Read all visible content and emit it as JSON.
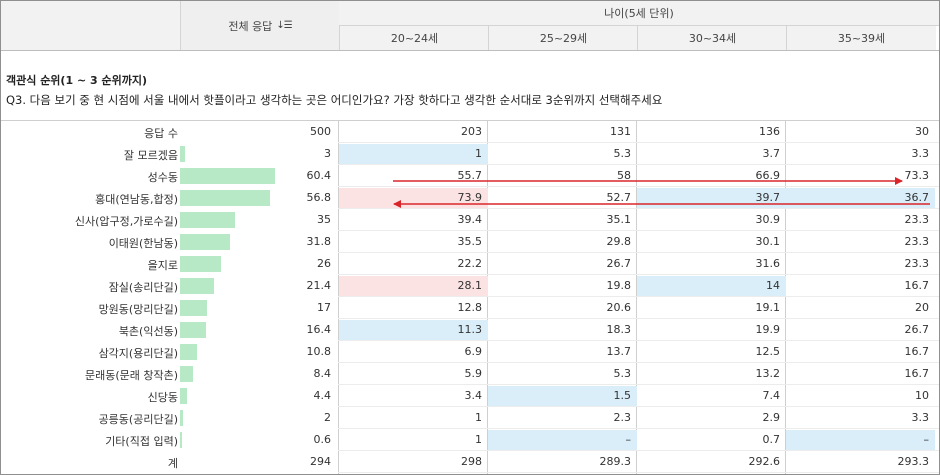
{
  "header": {
    "total_label": "전체 응답",
    "sort_glyph": "↓☰",
    "age_group_label": "나이(5세 단위)",
    "age_columns": [
      "20~24세",
      "25~29세",
      "30~34세",
      "35~39세"
    ]
  },
  "question": {
    "type_label": "객관식 순위(1 ~ 3 순위까지)",
    "text": "Q3. 다음 보기 중 현 시점에 서울 내에서 핫플이라고 생각하는 곳은 어디인가요? 가장 핫하다고 생각한 순서대로 3순위까지 선택해주세요"
  },
  "rows": [
    {
      "label": "응답 수",
      "total": "500",
      "bar": 0,
      "cells": [
        {
          "v": "203",
          "h": ""
        },
        {
          "v": "131",
          "h": ""
        },
        {
          "v": "136",
          "h": ""
        },
        {
          "v": "30",
          "h": ""
        }
      ]
    },
    {
      "label": "잘 모르겠음",
      "total": "3",
      "bar": 3,
      "cells": [
        {
          "v": "1",
          "h": "blue"
        },
        {
          "v": "5.3",
          "h": ""
        },
        {
          "v": "3.7",
          "h": ""
        },
        {
          "v": "3.3",
          "h": ""
        }
      ]
    },
    {
      "label": "성수동",
      "total": "60.4",
      "bar": 60.4,
      "cells": [
        {
          "v": "55.7",
          "h": ""
        },
        {
          "v": "58",
          "h": ""
        },
        {
          "v": "66.9",
          "h": ""
        },
        {
          "v": "73.3",
          "h": ""
        }
      ]
    },
    {
      "label": "홍대(연남동,합정)",
      "total": "56.8",
      "bar": 56.8,
      "cells": [
        {
          "v": "73.9",
          "h": "pink"
        },
        {
          "v": "52.7",
          "h": ""
        },
        {
          "v": "39.7",
          "h": "blue"
        },
        {
          "v": "36.7",
          "h": "blue"
        }
      ]
    },
    {
      "label": "신사(압구정,가로수길)",
      "total": "35",
      "bar": 35,
      "cells": [
        {
          "v": "39.4",
          "h": ""
        },
        {
          "v": "35.1",
          "h": ""
        },
        {
          "v": "30.9",
          "h": ""
        },
        {
          "v": "23.3",
          "h": ""
        }
      ]
    },
    {
      "label": "이태원(한남동)",
      "total": "31.8",
      "bar": 31.8,
      "cells": [
        {
          "v": "35.5",
          "h": ""
        },
        {
          "v": "29.8",
          "h": ""
        },
        {
          "v": "30.1",
          "h": ""
        },
        {
          "v": "23.3",
          "h": ""
        }
      ]
    },
    {
      "label": "을지로",
      "total": "26",
      "bar": 26,
      "cells": [
        {
          "v": "22.2",
          "h": ""
        },
        {
          "v": "26.7",
          "h": ""
        },
        {
          "v": "31.6",
          "h": ""
        },
        {
          "v": "23.3",
          "h": ""
        }
      ]
    },
    {
      "label": "잠실(송리단길)",
      "total": "21.4",
      "bar": 21.4,
      "cells": [
        {
          "v": "28.1",
          "h": "pink"
        },
        {
          "v": "19.8",
          "h": ""
        },
        {
          "v": "14",
          "h": "blue"
        },
        {
          "v": "16.7",
          "h": ""
        }
      ]
    },
    {
      "label": "망원동(망리단길)",
      "total": "17",
      "bar": 17,
      "cells": [
        {
          "v": "12.8",
          "h": ""
        },
        {
          "v": "20.6",
          "h": ""
        },
        {
          "v": "19.1",
          "h": ""
        },
        {
          "v": "20",
          "h": ""
        }
      ]
    },
    {
      "label": "북촌(익선동)",
      "total": "16.4",
      "bar": 16.4,
      "cells": [
        {
          "v": "11.3",
          "h": "blue"
        },
        {
          "v": "18.3",
          "h": ""
        },
        {
          "v": "19.9",
          "h": ""
        },
        {
          "v": "26.7",
          "h": ""
        }
      ]
    },
    {
      "label": "삼각지(용리단길)",
      "total": "10.8",
      "bar": 10.8,
      "cells": [
        {
          "v": "6.9",
          "h": ""
        },
        {
          "v": "13.7",
          "h": ""
        },
        {
          "v": "12.5",
          "h": ""
        },
        {
          "v": "16.7",
          "h": ""
        }
      ]
    },
    {
      "label": "문래동(문래 창작촌)",
      "total": "8.4",
      "bar": 8.4,
      "cells": [
        {
          "v": "5.9",
          "h": ""
        },
        {
          "v": "5.3",
          "h": ""
        },
        {
          "v": "13.2",
          "h": ""
        },
        {
          "v": "16.7",
          "h": ""
        }
      ]
    },
    {
      "label": "신당동",
      "total": "4.4",
      "bar": 4.4,
      "cells": [
        {
          "v": "3.4",
          "h": ""
        },
        {
          "v": "1.5",
          "h": "blue"
        },
        {
          "v": "7.4",
          "h": ""
        },
        {
          "v": "10",
          "h": ""
        }
      ]
    },
    {
      "label": "공릉동(공리단길)",
      "total": "2",
      "bar": 2,
      "cells": [
        {
          "v": "1",
          "h": ""
        },
        {
          "v": "2.3",
          "h": ""
        },
        {
          "v": "2.9",
          "h": ""
        },
        {
          "v": "3.3",
          "h": ""
        }
      ]
    },
    {
      "label": "기타(직접 입력)",
      "total": "0.6",
      "bar": 0.6,
      "cells": [
        {
          "v": "1",
          "h": ""
        },
        {
          "v": "–",
          "h": "blue"
        },
        {
          "v": "0.7",
          "h": ""
        },
        {
          "v": "–",
          "h": "blue"
        }
      ]
    },
    {
      "label": "계",
      "total": "294",
      "bar": 0,
      "cells": [
        {
          "v": "298",
          "h": ""
        },
        {
          "v": "289.3",
          "h": ""
        },
        {
          "v": "292.6",
          "h": ""
        },
        {
          "v": "293.3",
          "h": ""
        }
      ]
    }
  ],
  "colors": {
    "bar": "#b7e9c7",
    "highlight_low": "#d9eef8",
    "highlight_high": "#fbe3e4",
    "arrow": "#d9262b"
  }
}
